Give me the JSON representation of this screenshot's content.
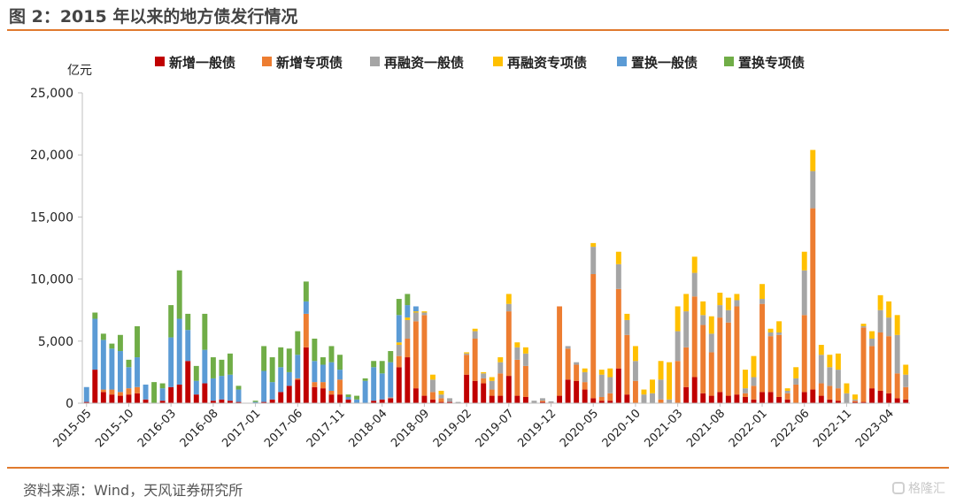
{
  "figure": {
    "title": "图 2：2015 年以来的地方债发行情况",
    "source": "资料来源：Wind，天风证券研究所",
    "watermark": "格隆汇"
  },
  "chart_data": {
    "type": "bar",
    "stacked": true,
    "ylabel": "亿元",
    "ylim": [
      0,
      25000
    ],
    "yticks": [
      0,
      5000,
      10000,
      15000,
      20000,
      25000
    ],
    "ytick_labels": [
      "0",
      "5,000",
      "10,000",
      "15,000",
      "20,000",
      "25,000"
    ],
    "xtick_labels": [
      "2015-05",
      "2015-10",
      "2016-03",
      "2016-08",
      "2017-01",
      "2017-06",
      "2017-11",
      "2018-04",
      "2018-09",
      "2019-02",
      "2019-07",
      "2019-12",
      "2020-05",
      "2020-10",
      "2021-03",
      "2021-08",
      "2022-01",
      "2022-06",
      "2022-11",
      "2023-04"
    ],
    "legend_position": "top",
    "grid": false,
    "colors": [
      "#C00000",
      "#ED7D31",
      "#A5A5A5",
      "#FFC000",
      "#5B9BD5",
      "#70AD47"
    ],
    "series_names": [
      "新增一般债",
      "新增专项债",
      "再融资一般债",
      "再融资专项债",
      "置换一般债",
      "置换专项债"
    ],
    "months": [
      "2015-05",
      "2015-06",
      "2015-07",
      "2015-08",
      "2015-09",
      "2015-10",
      "2015-11",
      "2015-12",
      "2016-01",
      "2016-02",
      "2016-03",
      "2016-04",
      "2016-05",
      "2016-06",
      "2016-07",
      "2016-08",
      "2016-09",
      "2016-10",
      "2016-11",
      "2016-12",
      "2017-01",
      "2017-02",
      "2017-03",
      "2017-04",
      "2017-05",
      "2017-06",
      "2017-07",
      "2017-08",
      "2017-09",
      "2017-10",
      "2017-11",
      "2017-12",
      "2018-01",
      "2018-02",
      "2018-03",
      "2018-04",
      "2018-05",
      "2018-06",
      "2018-07",
      "2018-08",
      "2018-09",
      "2018-10",
      "2018-11",
      "2018-12",
      "2019-01",
      "2019-02",
      "2019-03",
      "2019-04",
      "2019-05",
      "2019-06",
      "2019-07",
      "2019-08",
      "2019-09",
      "2019-10",
      "2019-11",
      "2019-12",
      "2020-01",
      "2020-02",
      "2020-03",
      "2020-04",
      "2020-05",
      "2020-06",
      "2020-07",
      "2020-08",
      "2020-09",
      "2020-10",
      "2020-11",
      "2020-12",
      "2021-01",
      "2021-02",
      "2021-03",
      "2021-04",
      "2021-05",
      "2021-06",
      "2021-07",
      "2021-08",
      "2021-09",
      "2021-10",
      "2021-11",
      "2021-12",
      "2022-01",
      "2022-02",
      "2022-03",
      "2022-04",
      "2022-05",
      "2022-06",
      "2022-07",
      "2022-08",
      "2022-09",
      "2022-10",
      "2022-11",
      "2022-12",
      "2023-01",
      "2023-02",
      "2023-03",
      "2023-04",
      "2023-05",
      "2023-06"
    ],
    "series": [
      {
        "name": "新增一般债",
        "values": [
          100,
          2700,
          900,
          700,
          600,
          700,
          800,
          300,
          0,
          200,
          1300,
          1500,
          3400,
          700,
          1600,
          200,
          300,
          200,
          100,
          0,
          0,
          100,
          300,
          900,
          1400,
          1900,
          4500,
          1300,
          1200,
          700,
          700,
          300,
          0,
          0,
          200,
          300,
          400,
          2900,
          3700,
          1200,
          600,
          300,
          100,
          100,
          0,
          2300,
          1800,
          1600,
          600,
          600,
          2200,
          600,
          500,
          0,
          100,
          50,
          600,
          1900,
          1800,
          1100,
          400,
          200,
          200,
          2800,
          700,
          0,
          0,
          0,
          0,
          0,
          0,
          1300,
          2100,
          800,
          600,
          900,
          600,
          700,
          500,
          300,
          900,
          900,
          500,
          300,
          0,
          900,
          1100,
          600,
          300,
          200,
          0,
          100,
          100,
          1200,
          1000,
          800,
          400,
          300
        ]
      },
      {
        "name": "新增专项债",
        "values": [
          0,
          0,
          200,
          400,
          300,
          500,
          500,
          0,
          0,
          0,
          0,
          0,
          0,
          0,
          0,
          0,
          0,
          0,
          0,
          0,
          0,
          0,
          0,
          0,
          0,
          100,
          2700,
          400,
          500,
          300,
          1200,
          0,
          0,
          0,
          0,
          0,
          0,
          900,
          1500,
          5400,
          6500,
          600,
          300,
          0,
          0,
          1600,
          3400,
          400,
          500,
          1800,
          5200,
          2900,
          2500,
          0,
          100,
          0,
          7200,
          2500,
          1300,
          600,
          10000,
          300,
          600,
          6400,
          4800,
          1800,
          0,
          0,
          300,
          0,
          3400,
          3200,
          6500,
          5500,
          3500,
          6000,
          5900,
          7100,
          300,
          1100,
          7100,
          4500,
          5000,
          500,
          1500,
          6200,
          14600,
          1000,
          1100,
          1000,
          0,
          100,
          6000,
          3400,
          4700,
          4600,
          2000,
          1000
        ]
      },
      {
        "name": "再融资一般债",
        "values": [
          0,
          0,
          0,
          0,
          0,
          0,
          0,
          0,
          0,
          0,
          0,
          0,
          0,
          0,
          0,
          0,
          0,
          0,
          0,
          0,
          0,
          0,
          0,
          0,
          0,
          0,
          0,
          0,
          0,
          0,
          0,
          0,
          0,
          0,
          0,
          0,
          100,
          900,
          1500,
          700,
          200,
          1000,
          300,
          300,
          100,
          100,
          600,
          400,
          700,
          900,
          600,
          1000,
          1000,
          200,
          200,
          100,
          0,
          200,
          200,
          800,
          2200,
          1800,
          1300,
          2000,
          1200,
          1600,
          700,
          800,
          1600,
          300,
          2400,
          2900,
          1900,
          800,
          1500,
          1000,
          1000,
          500,
          400,
          700,
          400,
          300,
          200,
          200,
          500,
          3600,
          3000,
          2300,
          1500,
          1500,
          800,
          100,
          100,
          600,
          1800,
          1500,
          3100,
          1000
        ]
      },
      {
        "name": "再融资专项债",
        "values": [
          0,
          0,
          0,
          0,
          0,
          0,
          0,
          0,
          0,
          0,
          0,
          0,
          0,
          0,
          0,
          0,
          0,
          0,
          0,
          0,
          0,
          0,
          0,
          0,
          0,
          0,
          0,
          0,
          0,
          0,
          0,
          0,
          0,
          0,
          0,
          0,
          0,
          200,
          200,
          100,
          100,
          400,
          300,
          0,
          0,
          100,
          200,
          100,
          300,
          400,
          800,
          400,
          500,
          0,
          0,
          0,
          0,
          0,
          0,
          300,
          300,
          400,
          700,
          1000,
          500,
          1200,
          400,
          1100,
          1500,
          3000,
          2000,
          1400,
          1300,
          1100,
          1400,
          1000,
          1000,
          500,
          1500,
          1700,
          1200,
          300,
          900,
          200,
          900,
          1500,
          1700,
          800,
          1000,
          1300,
          800,
          400,
          200,
          600,
          1200,
          1300,
          1600,
          800
        ]
      },
      {
        "name": "置换一般债",
        "values": [
          1200,
          4100,
          4000,
          3300,
          3300,
          1700,
          2400,
          1200,
          0,
          1000,
          4000,
          5300,
          2500,
          1100,
          2700,
          1800,
          1900,
          2100,
          1000,
          0,
          100,
          2500,
          1400,
          2000,
          1100,
          1900,
          1000,
          1700,
          1400,
          2300,
          800,
          200,
          300,
          1800,
          2700,
          2100,
          2800,
          2200,
          1000,
          400,
          0,
          0,
          0,
          0,
          0,
          0,
          0,
          0,
          0,
          0,
          0,
          0,
          0,
          0,
          0,
          0,
          0,
          0,
          0,
          0,
          0,
          0,
          0,
          0,
          0,
          0,
          0,
          0,
          0,
          0,
          0,
          0,
          0,
          0,
          0,
          0,
          0,
          0,
          0,
          0,
          0,
          0,
          0,
          0,
          0,
          0,
          0,
          0,
          0,
          0,
          0,
          0,
          0,
          0,
          0,
          0,
          0,
          0
        ]
      },
      {
        "name": "置换专项债",
        "values": [
          0,
          500,
          500,
          400,
          1300,
          600,
          2500,
          0,
          1700,
          400,
          2600,
          3900,
          1300,
          1200,
          2900,
          1700,
          1300,
          1700,
          300,
          0,
          100,
          2000,
          2000,
          1600,
          1900,
          1900,
          1600,
          1800,
          600,
          1300,
          1200,
          200,
          300,
          200,
          500,
          1000,
          900,
          1300,
          900,
          0,
          0,
          0,
          0,
          0,
          0,
          0,
          0,
          0,
          0,
          0,
          0,
          0,
          0,
          0,
          0,
          0,
          0,
          0,
          0,
          0,
          0,
          0,
          0,
          0,
          0,
          0,
          0,
          0,
          0,
          0,
          0,
          0,
          0,
          0,
          0,
          0,
          0,
          0,
          0,
          0,
          0,
          0,
          0,
          0,
          0,
          0,
          0,
          0,
          0,
          0,
          0,
          0,
          0,
          0,
          0,
          0,
          0,
          0
        ]
      }
    ]
  }
}
